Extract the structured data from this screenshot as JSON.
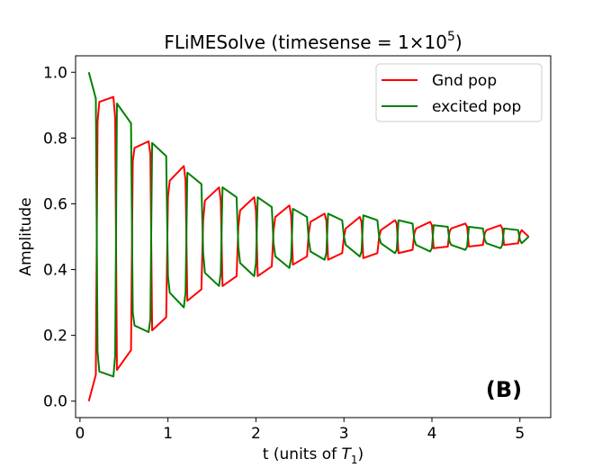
{
  "chart_data": {
    "type": "line",
    "title": "FLiMESolve (timesense = 1×10",
    "title_superscript": "5",
    "title_suffix": ")",
    "xlabel": "t (units of ",
    "xlabel_symbol": "T",
    "xlabel_subscript": "1",
    "xlabel_suffix": ")",
    "ylabel": "Amplitude",
    "xlim": [
      -0.05,
      5.35
    ],
    "ylim": [
      -0.05,
      1.05
    ],
    "xticks": [
      0,
      1,
      2,
      3,
      4,
      5
    ],
    "yticks": [
      0.0,
      0.2,
      0.4,
      0.6,
      0.8,
      1.0
    ],
    "xtick_labels": [
      "0",
      "1",
      "2",
      "3",
      "4",
      "5"
    ],
    "ytick_labels": [
      "0.0",
      "0.2",
      "0.4",
      "0.6",
      "0.8",
      "1.0"
    ],
    "grid": false,
    "legend_position": "top-right",
    "annotation": "(B)",
    "series": [
      {
        "name": "Gnd pop",
        "color": "#ff0000",
        "x": [
          0.1,
          0.18,
          0.2,
          0.22,
          0.38,
          0.4,
          0.42,
          0.58,
          0.6,
          0.62,
          0.78,
          0.8,
          0.82,
          0.98,
          1.0,
          1.02,
          1.18,
          1.2,
          1.22,
          1.38,
          1.4,
          1.42,
          1.58,
          1.6,
          1.62,
          1.78,
          1.8,
          1.82,
          1.98,
          2.0,
          2.02,
          2.18,
          2.2,
          2.22,
          2.38,
          2.4,
          2.42,
          2.58,
          2.6,
          2.62,
          2.78,
          2.8,
          2.82,
          2.98,
          3.0,
          3.02,
          3.18,
          3.2,
          3.22,
          3.38,
          3.4,
          3.42,
          3.58,
          3.6,
          3.62,
          3.78,
          3.8,
          3.82,
          3.98,
          4.0,
          4.02,
          4.18,
          4.2,
          4.22,
          4.38,
          4.4,
          4.42,
          4.58,
          4.6,
          4.62,
          4.78,
          4.8,
          4.82,
          4.98,
          5.0,
          5.02,
          5.1
        ],
        "y": [
          0.0,
          0.08,
          0.85,
          0.91,
          0.925,
          0.86,
          0.095,
          0.155,
          0.73,
          0.77,
          0.79,
          0.75,
          0.215,
          0.255,
          0.62,
          0.67,
          0.715,
          0.67,
          0.305,
          0.34,
          0.55,
          0.61,
          0.65,
          0.61,
          0.35,
          0.38,
          0.53,
          0.58,
          0.62,
          0.58,
          0.38,
          0.41,
          0.52,
          0.56,
          0.595,
          0.565,
          0.415,
          0.44,
          0.51,
          0.545,
          0.57,
          0.55,
          0.43,
          0.45,
          0.5,
          0.525,
          0.56,
          0.545,
          0.435,
          0.45,
          0.5,
          0.52,
          0.55,
          0.54,
          0.45,
          0.46,
          0.51,
          0.525,
          0.545,
          0.535,
          0.465,
          0.47,
          0.515,
          0.525,
          0.54,
          0.53,
          0.47,
          0.475,
          0.51,
          0.52,
          0.535,
          0.525,
          0.475,
          0.48,
          0.51,
          0.52,
          0.5
        ]
      },
      {
        "name": "excited pop",
        "color": "#008000",
        "x": [
          0.1,
          0.18,
          0.2,
          0.22,
          0.38,
          0.4,
          0.42,
          0.58,
          0.6,
          0.62,
          0.78,
          0.8,
          0.82,
          0.98,
          1.0,
          1.02,
          1.18,
          1.2,
          1.22,
          1.38,
          1.4,
          1.42,
          1.58,
          1.6,
          1.62,
          1.78,
          1.8,
          1.82,
          1.98,
          2.0,
          2.02,
          2.18,
          2.2,
          2.22,
          2.38,
          2.4,
          2.42,
          2.58,
          2.6,
          2.62,
          2.78,
          2.8,
          2.82,
          2.98,
          3.0,
          3.02,
          3.18,
          3.2,
          3.22,
          3.38,
          3.4,
          3.42,
          3.58,
          3.6,
          3.62,
          3.78,
          3.8,
          3.82,
          3.98,
          4.0,
          4.02,
          4.18,
          4.2,
          4.22,
          4.38,
          4.4,
          4.42,
          4.58,
          4.6,
          4.62,
          4.78,
          4.8,
          4.82,
          4.98,
          5.0,
          5.02,
          5.1
        ],
        "y": [
          1.0,
          0.92,
          0.15,
          0.09,
          0.075,
          0.14,
          0.905,
          0.845,
          0.27,
          0.23,
          0.21,
          0.25,
          0.785,
          0.745,
          0.38,
          0.33,
          0.285,
          0.33,
          0.695,
          0.66,
          0.45,
          0.39,
          0.35,
          0.39,
          0.65,
          0.62,
          0.47,
          0.42,
          0.38,
          0.42,
          0.62,
          0.59,
          0.48,
          0.44,
          0.405,
          0.435,
          0.585,
          0.56,
          0.49,
          0.455,
          0.43,
          0.45,
          0.57,
          0.55,
          0.5,
          0.475,
          0.44,
          0.455,
          0.565,
          0.55,
          0.5,
          0.48,
          0.45,
          0.46,
          0.55,
          0.54,
          0.49,
          0.475,
          0.455,
          0.465,
          0.535,
          0.53,
          0.485,
          0.475,
          0.46,
          0.47,
          0.53,
          0.525,
          0.49,
          0.48,
          0.465,
          0.475,
          0.525,
          0.52,
          0.49,
          0.48,
          0.5
        ]
      }
    ]
  }
}
